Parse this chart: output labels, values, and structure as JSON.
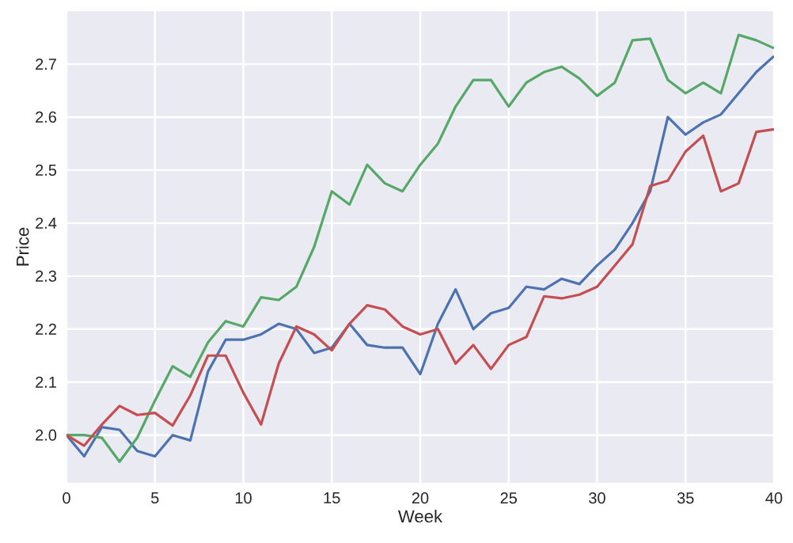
{
  "chart_data": {
    "type": "line",
    "xlabel": "Week",
    "ylabel": "Price",
    "x": [
      0,
      1,
      2,
      3,
      4,
      5,
      6,
      7,
      8,
      9,
      10,
      11,
      12,
      13,
      14,
      15,
      16,
      17,
      18,
      19,
      20,
      21,
      22,
      23,
      24,
      25,
      26,
      27,
      28,
      29,
      30,
      31,
      32,
      33,
      34,
      35,
      36,
      37,
      38,
      39,
      40
    ],
    "series": [
      {
        "color": "#4c72b0",
        "values": [
          2.0,
          1.96,
          2.015,
          2.01,
          1.97,
          1.96,
          2.0,
          1.99,
          2.12,
          2.18,
          2.18,
          2.19,
          2.21,
          2.2,
          2.155,
          2.165,
          2.21,
          2.17,
          2.165,
          2.165,
          2.115,
          2.21,
          2.275,
          2.2,
          2.23,
          2.24,
          2.28,
          2.275,
          2.295,
          2.285,
          2.32,
          2.35,
          2.4,
          2.46,
          2.6,
          2.567,
          2.59,
          2.605,
          2.645,
          2.685,
          2.715
        ]
      },
      {
        "color": "#55a868",
        "values": [
          2.0,
          2.0,
          1.995,
          1.95,
          1.995,
          2.065,
          2.13,
          2.11,
          2.175,
          2.215,
          2.205,
          2.26,
          2.255,
          2.28,
          2.355,
          2.46,
          2.435,
          2.51,
          2.475,
          2.46,
          2.51,
          2.55,
          2.62,
          2.67,
          2.67,
          2.62,
          2.665,
          2.685,
          2.695,
          2.673,
          2.64,
          2.665,
          2.745,
          2.748,
          2.67,
          2.645,
          2.665,
          2.645,
          2.755,
          2.745,
          2.73
        ]
      },
      {
        "color": "#c44e52",
        "values": [
          2.0,
          1.98,
          2.02,
          2.055,
          2.038,
          2.042,
          2.018,
          2.075,
          2.15,
          2.15,
          2.08,
          2.02,
          2.135,
          2.205,
          2.19,
          2.16,
          2.21,
          2.245,
          2.237,
          2.205,
          2.19,
          2.2,
          2.135,
          2.17,
          2.125,
          2.17,
          2.185,
          2.262,
          2.258,
          2.265,
          2.28,
          2.32,
          2.36,
          2.47,
          2.48,
          2.535,
          2.565,
          2.46,
          2.475,
          2.572,
          2.577
        ]
      }
    ],
    "xlim": [
      0,
      40
    ],
    "ylim": [
      1.91,
      2.8
    ],
    "xticks": [
      0,
      5,
      10,
      15,
      20,
      25,
      30,
      35,
      40
    ],
    "yticks": [
      {
        "value": 2.0,
        "label": "2.0"
      },
      2.1,
      2.2,
      2.3,
      2.4,
      2.5,
      2.6,
      2.7
    ],
    "grid": true
  }
}
